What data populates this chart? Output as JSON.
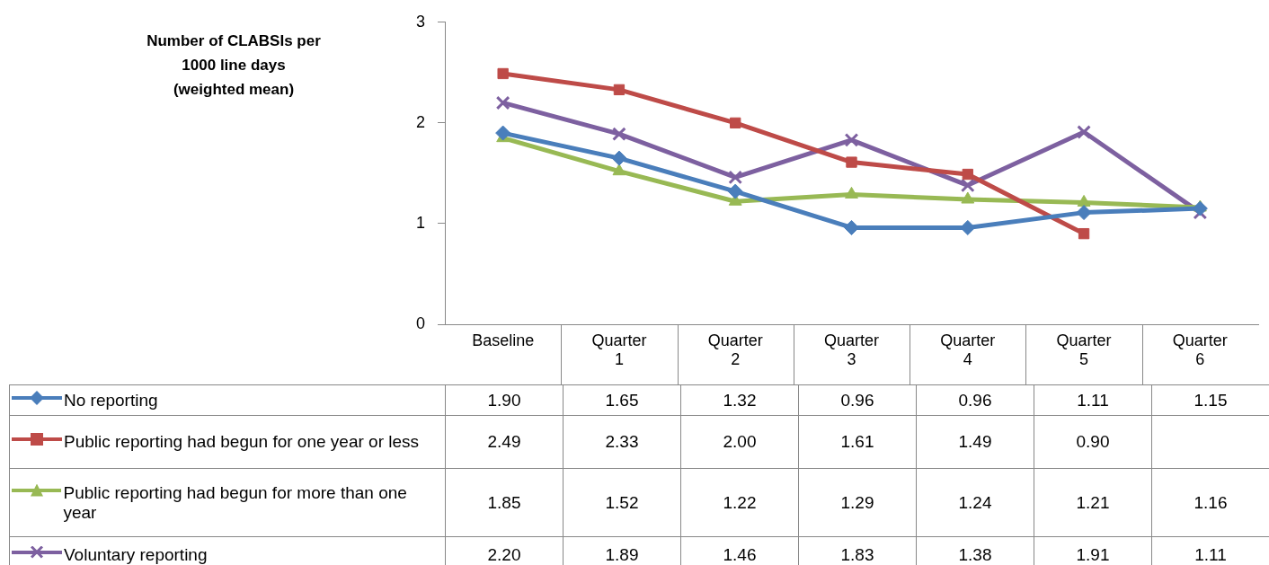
{
  "chart_data": {
    "type": "line",
    "annotations": [
      "Number of CLABSIs per\n1000 line days\n(weighted mean)"
    ],
    "categories": [
      "Baseline",
      "Quarter 1",
      "Quarter 2",
      "Quarter 3",
      "Quarter 4",
      "Quarter 5",
      "Quarter 6"
    ],
    "ylim": [
      0,
      3
    ],
    "yticks": [
      0,
      1,
      2,
      3
    ],
    "grid": false,
    "legend": "bottom",
    "series": [
      {
        "name": "No reporting",
        "color": "#4a7ebb",
        "marker": "diamond",
        "values": [
          1.9,
          1.65,
          1.32,
          0.96,
          0.96,
          1.11,
          1.15
        ],
        "value_labels": [
          "1.90",
          "1.65",
          "1.32",
          "0.96",
          "0.96",
          "1.11",
          "1.15"
        ]
      },
      {
        "name": "Public reporting had begun for one year or less",
        "color": "#be4b48",
        "marker": "square",
        "values": [
          2.49,
          2.33,
          2.0,
          1.61,
          1.49,
          0.9,
          null
        ],
        "value_labels": [
          "2.49",
          "2.33",
          "2.00",
          "1.61",
          "1.49",
          "0.90",
          null
        ]
      },
      {
        "name": "Public reporting had begun for more than one year",
        "color": "#98b954",
        "marker": "triangle",
        "values": [
          1.85,
          1.52,
          1.22,
          1.29,
          1.24,
          1.21,
          1.16
        ],
        "value_labels": [
          "1.85",
          "1.52",
          "1.22",
          "1.29",
          "1.24",
          "1.21",
          "1.16"
        ]
      },
      {
        "name": "Voluntary reporting",
        "color": "#7d60a0",
        "marker": "cross",
        "values": [
          2.2,
          1.89,
          1.46,
          1.83,
          1.38,
          1.91,
          1.11
        ],
        "value_labels": [
          "2.20",
          "1.89",
          "1.46",
          "1.83",
          "1.38",
          "1.91",
          "1.11"
        ]
      }
    ]
  }
}
